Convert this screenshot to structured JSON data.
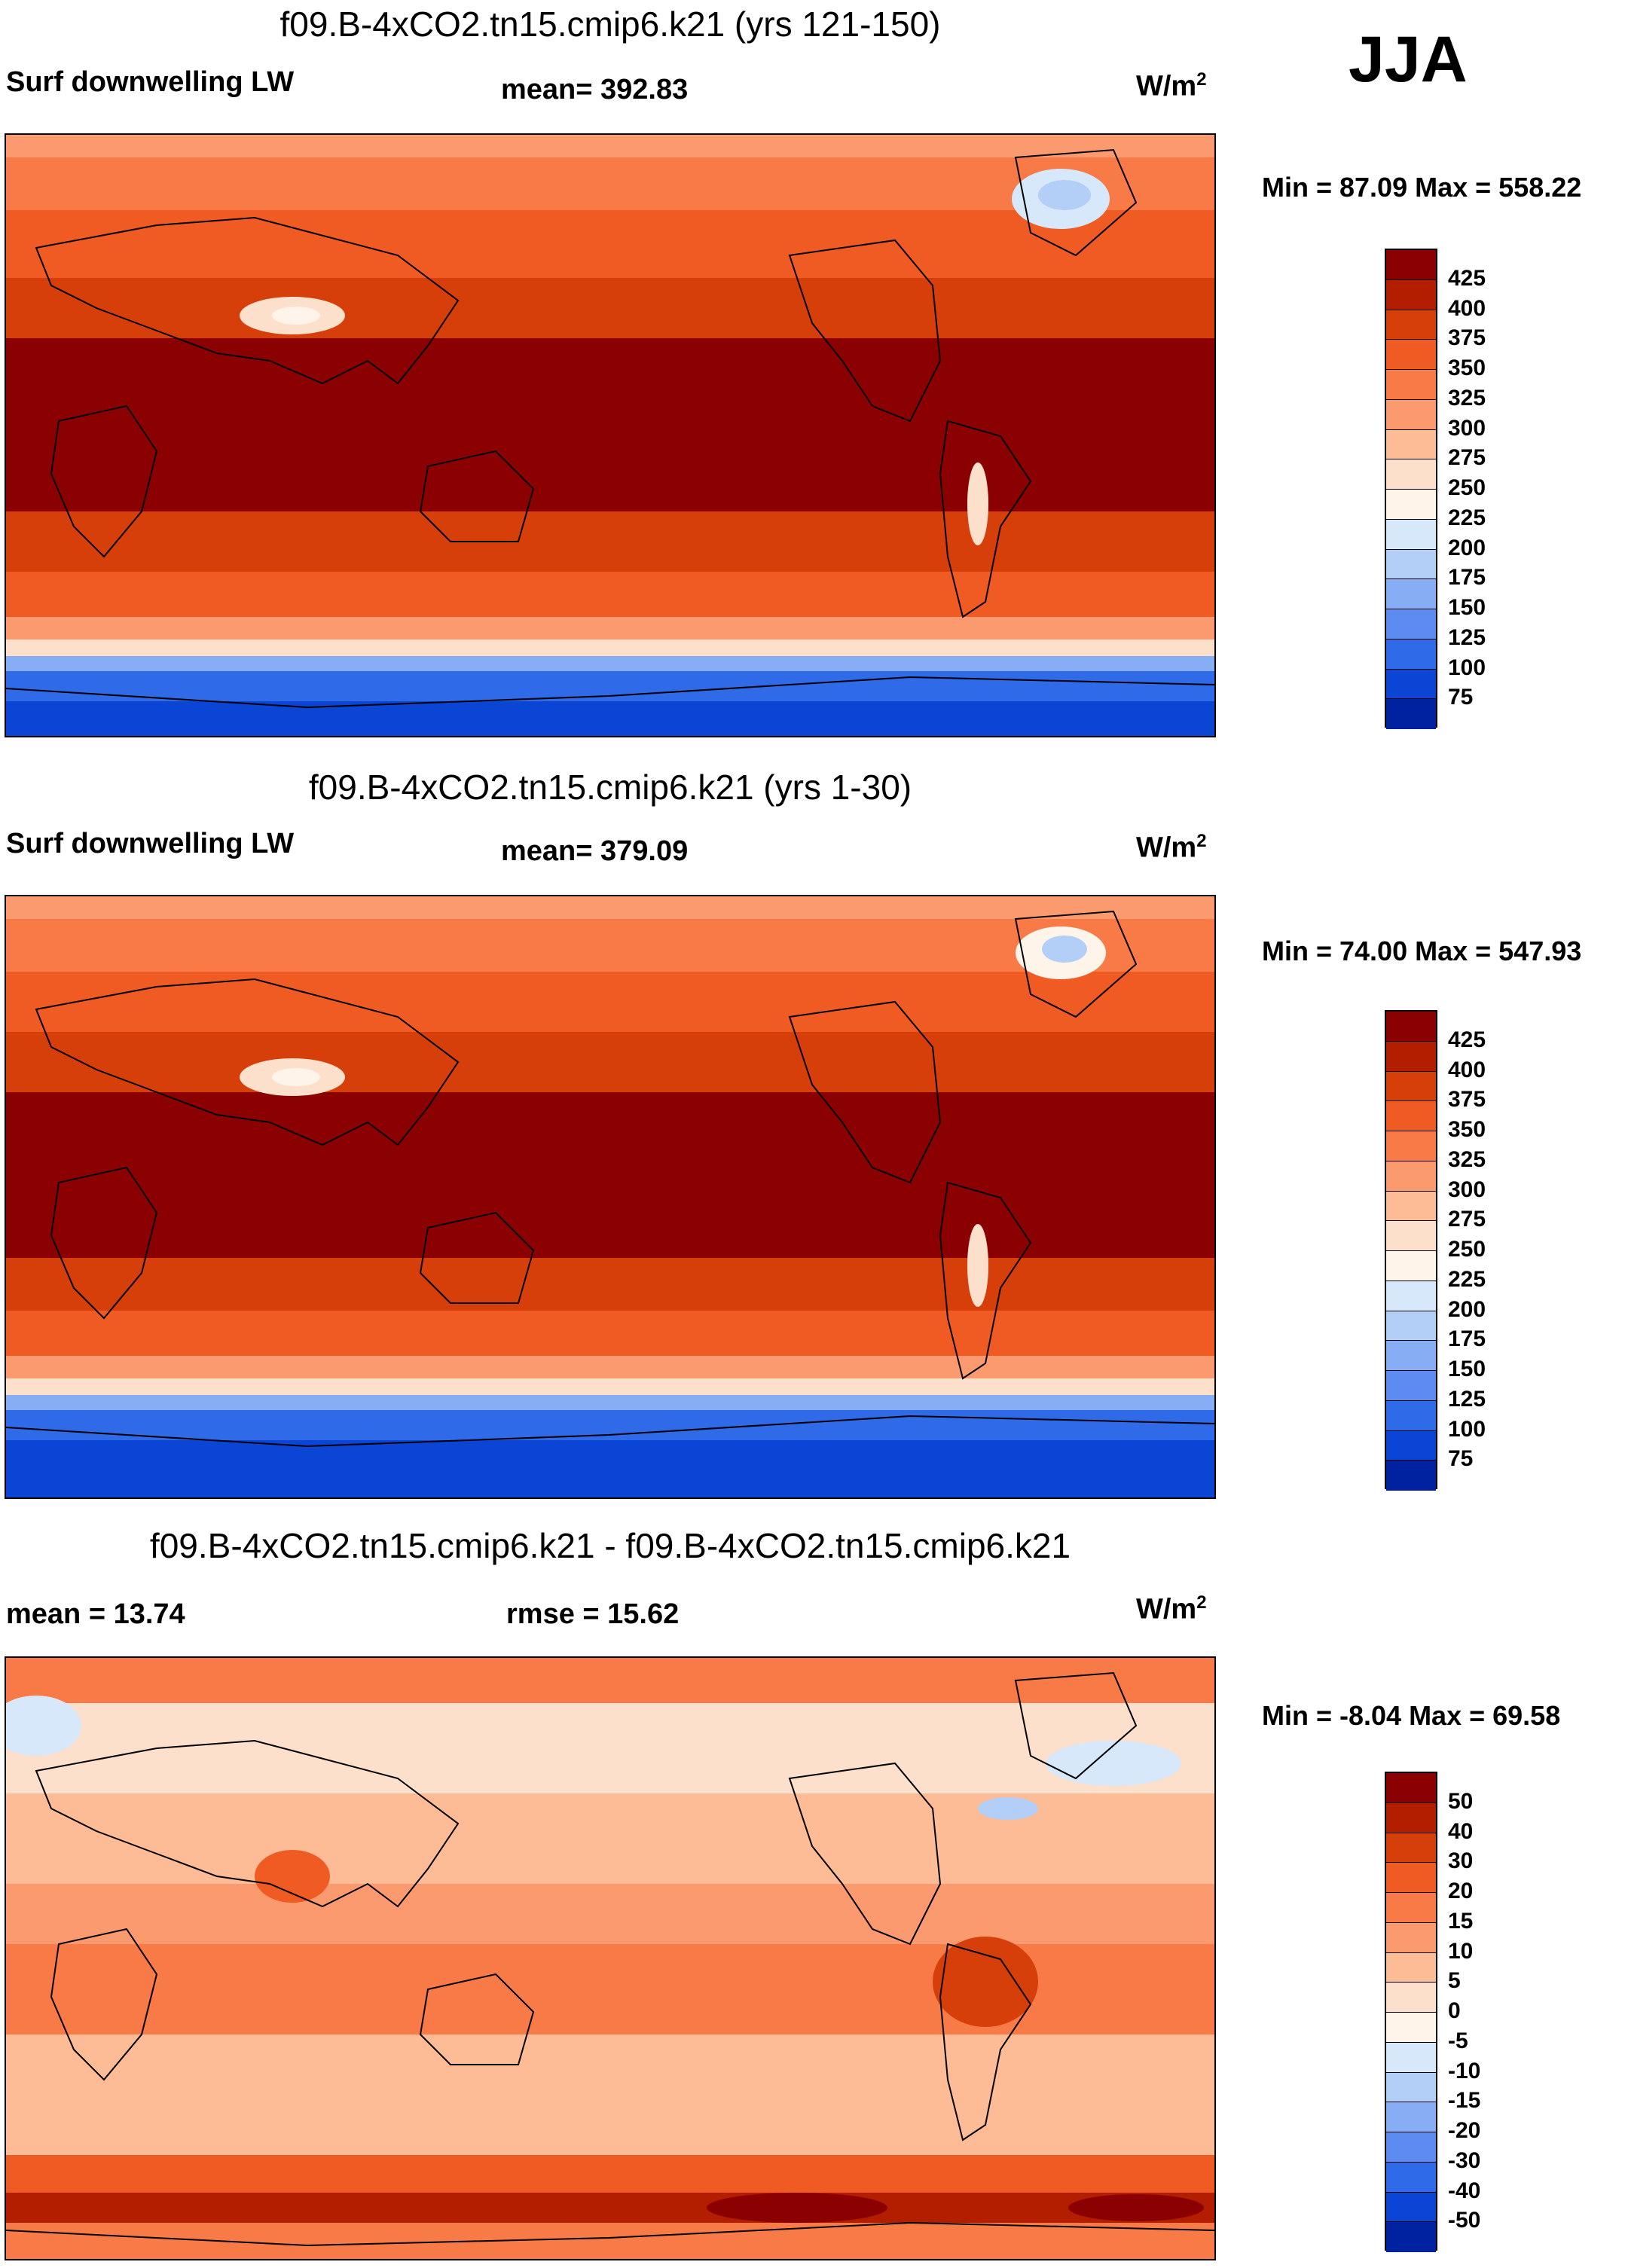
{
  "season": "JJA",
  "chart_data": [
    {
      "type": "heatmap",
      "title": "f09.B-4xCO2.tn15.cmip6.k21 (yrs 121-150)",
      "variable": "Surf downwelling LW",
      "stat_text": "mean= 392.83",
      "units": "W/m",
      "units_sup": "2",
      "minmax_text": "Min =  87.09 Max = 558.22",
      "min": 87.09,
      "max": 558.22,
      "mean": 392.83,
      "levels": [
        "425",
        "400",
        "375",
        "350",
        "325",
        "300",
        "275",
        "250",
        "225",
        "200",
        "175",
        "150",
        "125",
        "100",
        "75"
      ],
      "colors": [
        "#8b0000",
        "#b31d00",
        "#d63e0a",
        "#f05a23",
        "#f77a47",
        "#fb9a6e",
        "#fdbc95",
        "#fde0cc",
        "#fff4ea",
        "#d8e8fb",
        "#b3cef7",
        "#87aef4",
        "#5c8cef",
        "#2f6ae8",
        "#0a45d6",
        "#0022a0"
      ]
    },
    {
      "type": "heatmap",
      "title": "f09.B-4xCO2.tn15.cmip6.k21 (yrs 1-30)",
      "variable": "Surf downwelling LW",
      "stat_text": "mean= 379.09",
      "units": "W/m",
      "units_sup": "2",
      "minmax_text": "Min =  74.00 Max = 547.93",
      "min": 74.0,
      "max": 547.93,
      "mean": 379.09,
      "levels": [
        "425",
        "400",
        "375",
        "350",
        "325",
        "300",
        "275",
        "250",
        "225",
        "200",
        "175",
        "150",
        "125",
        "100",
        "75"
      ],
      "colors": [
        "#8b0000",
        "#b31d00",
        "#d63e0a",
        "#f05a23",
        "#f77a47",
        "#fb9a6e",
        "#fdbc95",
        "#fde0cc",
        "#fff4ea",
        "#d8e8fb",
        "#b3cef7",
        "#87aef4",
        "#5c8cef",
        "#2f6ae8",
        "#0a45d6",
        "#0022a0"
      ]
    },
    {
      "type": "heatmap",
      "title": "f09.B-4xCO2.tn15.cmip6.k21 - f09.B-4xCO2.tn15.cmip6.k21",
      "stat_text_left": "mean =  13.74",
      "stat_text": "rmse =  15.62",
      "units": "W/m",
      "units_sup": "2",
      "minmax_text": "Min =  -8.04 Max =  69.58",
      "min": -8.04,
      "max": 69.58,
      "mean": 13.74,
      "rmse": 15.62,
      "levels": [
        "50",
        "40",
        "30",
        "20",
        "15",
        "10",
        "5",
        "0",
        "-5",
        "-10",
        "-15",
        "-20",
        "-30",
        "-40",
        "-50"
      ],
      "colors": [
        "#8b0000",
        "#b31d00",
        "#d63e0a",
        "#f05a23",
        "#f77a47",
        "#fb9a6e",
        "#fdbc95",
        "#fde0cc",
        "#fff4ea",
        "#d8e8fb",
        "#b3cef7",
        "#87aef4",
        "#5c8cef",
        "#2f6ae8",
        "#0a45d6",
        "#0022a0"
      ]
    }
  ]
}
